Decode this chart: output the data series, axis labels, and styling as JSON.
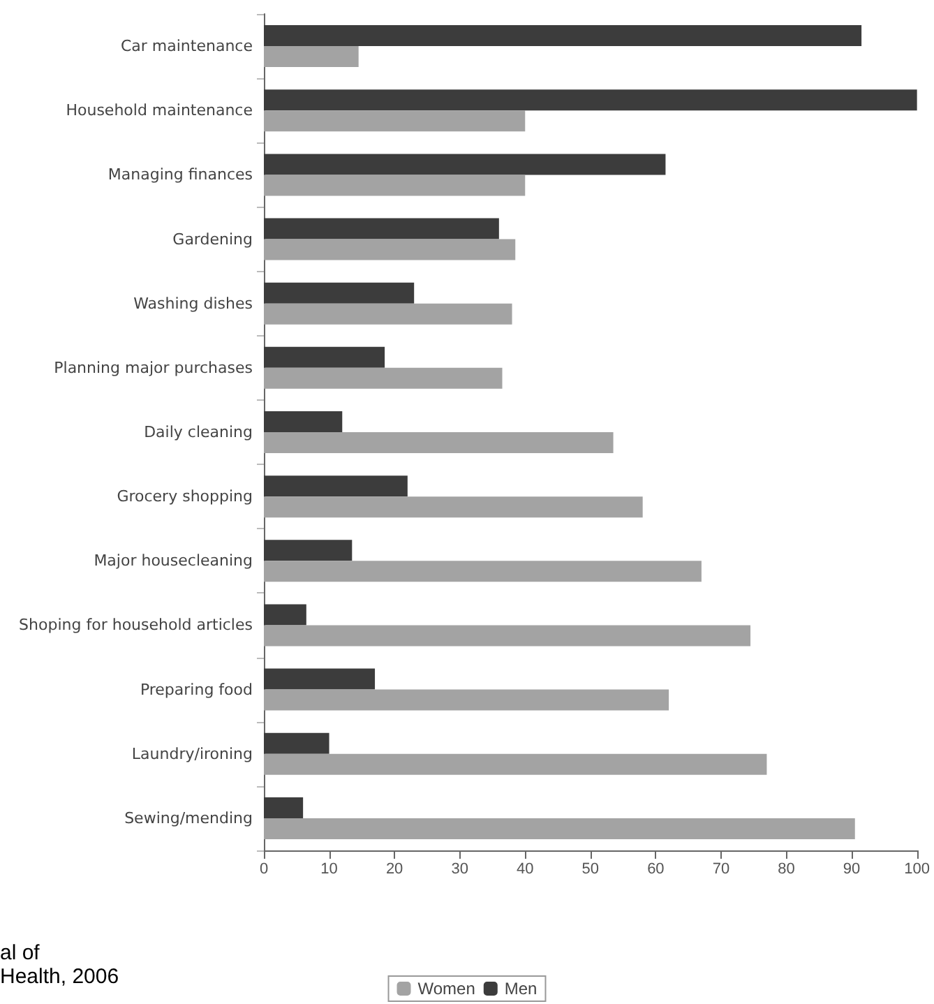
{
  "chart_data": {
    "type": "bar",
    "orientation": "horizontal",
    "categories": [
      "Car maintenance",
      "Household maintenance",
      "Managing finances",
      "Gardening",
      "Washing dishes",
      "Planning major purchases",
      "Daily cleaning",
      "Grocery shopping",
      "Major housecleaning",
      "Shoping for household articles",
      "Preparing food",
      "Laundry/ironing",
      "Sewing/mending"
    ],
    "series": [
      {
        "name": "Women",
        "color": "#a3a3a3",
        "values": [
          14.5,
          40,
          40,
          38.5,
          38,
          36.5,
          53.5,
          58,
          67,
          74.5,
          62,
          77,
          90.5
        ]
      },
      {
        "name": "Men",
        "color": "#3c3c3c",
        "values": [
          91.5,
          100,
          61.5,
          36,
          23,
          18.5,
          12,
          22,
          13.5,
          6.5,
          17,
          10,
          6
        ]
      }
    ],
    "xlim": [
      0,
      100
    ],
    "xticks": [
      0,
      10,
      20,
      30,
      40,
      50,
      60,
      70,
      80,
      90,
      100
    ],
    "grid": false,
    "legend": "bottom",
    "annotations": [
      "al of",
      "Health, 2006"
    ]
  }
}
